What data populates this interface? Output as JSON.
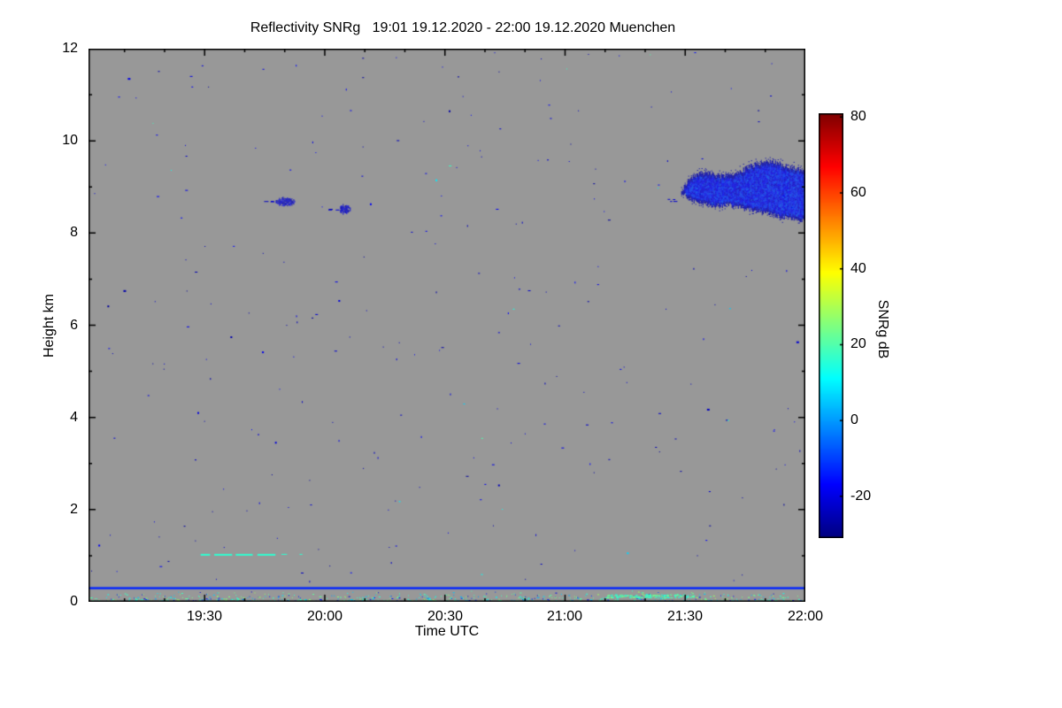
{
  "chart_data": {
    "type": "heatmap",
    "title": "Reflectivity SNRg   19:01 19.12.2020 - 22:00 19.12.2020 Muenchen",
    "station": "Muenchen",
    "time_span": "19:01 19.12.2020 - 22:00 19.12.2020",
    "xlabel": "Time UTC",
    "ylabel": "Height km",
    "x_start": "19:01",
    "x_end": "22:00",
    "x_ticks": [
      "19:30",
      "20:00",
      "20:30",
      "21:00",
      "21:30",
      "22:00"
    ],
    "ylim": [
      0,
      12
    ],
    "y_ticks": [
      0,
      2,
      4,
      6,
      8,
      10,
      12
    ],
    "plot_bg": "#989898",
    "colorbar": {
      "label": "SNRg dB",
      "ticks": [
        80,
        60,
        40,
        20,
        0,
        -20
      ],
      "vmin": -31,
      "vmax": 81,
      "colormap": "jet"
    },
    "features": {
      "noise_speckles": {
        "description": "sparse 1-2 px dark blue noise dots scattered over whole time-height field",
        "count": 270,
        "snr_db_range": [
          -28,
          -16
        ]
      },
      "ground_line": {
        "description": "continuous blue clutter line across full time span",
        "height_km": 0.3,
        "snr_db": -13
      },
      "surface_stripe": {
        "description": "dense green/cyan/blue speckle layer near ground 0-0.25 km",
        "height_km_min": 0.0,
        "height_km_max": 0.25,
        "count": 700,
        "dense_patch": {
          "time_start": "21:10",
          "time_end": "21:32",
          "height_km": 0.13
        }
      },
      "cyan_segment": {
        "description": "broken cyan echo line at ~1 km",
        "time_start": "19:29",
        "time_end": "19:48",
        "height_km": 1.02,
        "snr_db": 16
      },
      "small_cloud_1": {
        "time_center": "19:50",
        "height_km": 8.68,
        "half_width_min": 2.5,
        "half_height_km": 0.09,
        "snr_db_range": [
          -28,
          -16
        ]
      },
      "small_cloud_2": {
        "time_center": "20:05",
        "height_km": 8.52,
        "half_width_min": 1.4,
        "half_height_km": 0.1,
        "snr_db_range": [
          -28,
          -16
        ]
      },
      "main_cloud": {
        "description": "lumpy blue cirrus cloud echo at upper right",
        "time_start": "21:29",
        "time_end": "22:00",
        "height_km_min": 8.3,
        "height_km_max": 9.6,
        "snr_db_range": [
          -23,
          -8
        ],
        "top_profile": [
          [
            0,
            9.0
          ],
          [
            0.1,
            9.25
          ],
          [
            0.2,
            9.3
          ],
          [
            0.32,
            9.22
          ],
          [
            0.45,
            9.3
          ],
          [
            0.6,
            9.5
          ],
          [
            0.75,
            9.55
          ],
          [
            0.88,
            9.42
          ],
          [
            1,
            9.35
          ]
        ],
        "bottom_profile": [
          [
            0,
            8.82
          ],
          [
            0.12,
            8.7
          ],
          [
            0.25,
            8.6
          ],
          [
            0.4,
            8.62
          ],
          [
            0.55,
            8.52
          ],
          [
            0.7,
            8.45
          ],
          [
            0.82,
            8.35
          ],
          [
            1,
            8.3
          ]
        ]
      }
    }
  }
}
